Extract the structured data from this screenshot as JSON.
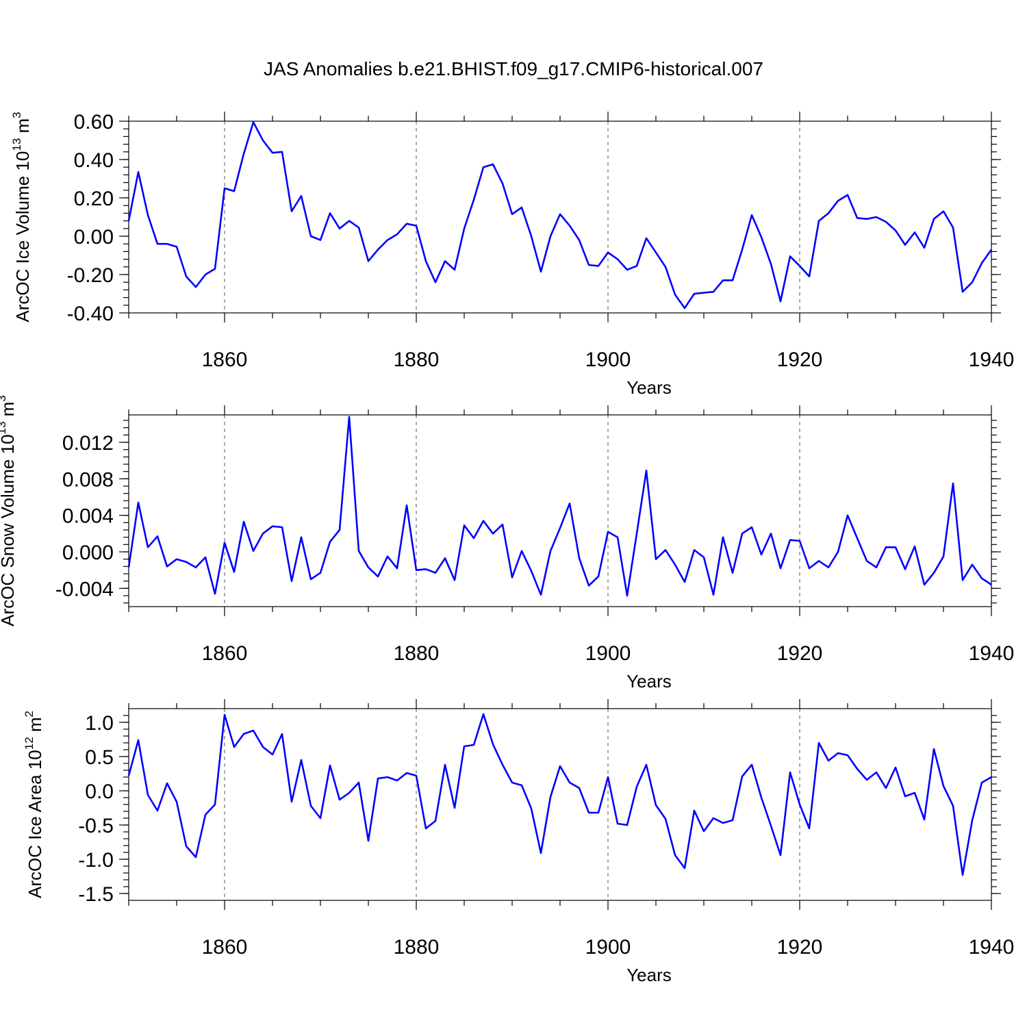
{
  "chart_data": {
    "title": "JAS Anomalies b.e21.BHIST.f09_g17.CMIP6-historical.007",
    "panels": [
      {
        "type": "line",
        "ylabel": "ArcOC Ice Volume 10",
        "ylabel_exp": "13",
        "ylabel_unit": " m",
        "ylabel_unit_exp": "3",
        "xlabel": "Years",
        "xlim": [
          1850,
          1940
        ],
        "ylim": [
          -0.4,
          0.6
        ],
        "yticks": [
          -0.4,
          -0.2,
          0.0,
          0.2,
          0.4,
          0.6
        ],
        "ytick_labels": [
          "-0.40",
          "-0.20",
          "0.00",
          "0.20",
          "0.40",
          "0.60"
        ],
        "xticks": [
          1860,
          1880,
          1900,
          1920,
          1940
        ],
        "xtick_labels": [
          "1860",
          "1880",
          "1900",
          "1920",
          "1940"
        ],
        "grid_x": [
          1860,
          1880,
          1900,
          1920
        ],
        "color": "#0000ff",
        "x": [
          1850,
          1851,
          1852,
          1853,
          1854,
          1855,
          1856,
          1857,
          1858,
          1859,
          1860,
          1861,
          1862,
          1863,
          1864,
          1865,
          1866,
          1867,
          1868,
          1869,
          1870,
          1871,
          1872,
          1873,
          1874,
          1875,
          1876,
          1877,
          1878,
          1879,
          1880,
          1881,
          1882,
          1883,
          1884,
          1885,
          1886,
          1887,
          1888,
          1889,
          1890,
          1891,
          1892,
          1893,
          1894,
          1895,
          1896,
          1897,
          1898,
          1899,
          1900,
          1901,
          1902,
          1903,
          1904,
          1905,
          1906,
          1907,
          1908,
          1909,
          1910,
          1911,
          1912,
          1913,
          1914,
          1915,
          1916,
          1917,
          1918,
          1919,
          1920,
          1921,
          1922,
          1923,
          1924,
          1925,
          1926,
          1927,
          1928,
          1929,
          1930,
          1931,
          1932,
          1933,
          1934,
          1935,
          1936,
          1937,
          1938,
          1939,
          1940
        ],
        "values": [
          0.08,
          0.335,
          0.11,
          -0.04,
          -0.04,
          -0.055,
          -0.21,
          -0.265,
          -0.2,
          -0.17,
          0.25,
          0.235,
          0.43,
          0.595,
          0.5,
          0.435,
          0.44,
          0.13,
          0.21,
          0.0,
          -0.02,
          0.12,
          0.04,
          0.08,
          0.045,
          -0.13,
          -0.07,
          -0.02,
          0.01,
          0.065,
          0.055,
          -0.13,
          -0.24,
          -0.13,
          -0.175,
          0.04,
          0.19,
          0.36,
          0.375,
          0.275,
          0.115,
          0.15,
          0.0,
          -0.185,
          0.0,
          0.115,
          0.055,
          -0.02,
          -0.15,
          -0.155,
          -0.085,
          -0.12,
          -0.175,
          -0.155,
          -0.01,
          -0.085,
          -0.16,
          -0.305,
          -0.375,
          -0.3,
          -0.295,
          -0.29,
          -0.23,
          -0.23,
          -0.07,
          0.11,
          -0.005,
          -0.145,
          -0.34,
          -0.105,
          -0.155,
          -0.21,
          0.08,
          0.12,
          0.185,
          0.215,
          0.095,
          0.09,
          0.1,
          0.075,
          0.03,
          -0.045,
          0.02,
          -0.06,
          0.09,
          0.13,
          0.045,
          -0.29,
          -0.24,
          -0.14,
          -0.07
        ]
      },
      {
        "type": "line",
        "ylabel": "ArcOC Snow Volume 10",
        "ylabel_exp": "13",
        "ylabel_unit": " m",
        "ylabel_unit_exp": "3",
        "xlabel": "Years",
        "xlim": [
          1850,
          1940
        ],
        "ylim": [
          -0.006,
          0.015
        ],
        "yticks": [
          -0.004,
          0.0,
          0.004,
          0.008,
          0.012
        ],
        "ytick_labels": [
          "-0.004",
          "0.000",
          "0.004",
          "0.008",
          "0.012"
        ],
        "xticks": [
          1860,
          1880,
          1900,
          1920,
          1940
        ],
        "xtick_labels": [
          "1860",
          "1880",
          "1900",
          "1920",
          "1940"
        ],
        "grid_x": [
          1860,
          1880,
          1900,
          1920
        ],
        "color": "#0000ff",
        "x": [
          1850,
          1851,
          1852,
          1853,
          1854,
          1855,
          1856,
          1857,
          1858,
          1859,
          1860,
          1861,
          1862,
          1863,
          1864,
          1865,
          1866,
          1867,
          1868,
          1869,
          1870,
          1871,
          1872,
          1873,
          1874,
          1875,
          1876,
          1877,
          1878,
          1879,
          1880,
          1881,
          1882,
          1883,
          1884,
          1885,
          1886,
          1887,
          1888,
          1889,
          1890,
          1891,
          1892,
          1893,
          1894,
          1895,
          1896,
          1897,
          1898,
          1899,
          1900,
          1901,
          1902,
          1903,
          1904,
          1905,
          1906,
          1907,
          1908,
          1909,
          1910,
          1911,
          1912,
          1913,
          1914,
          1915,
          1916,
          1917,
          1918,
          1919,
          1920,
          1921,
          1922,
          1923,
          1924,
          1925,
          1926,
          1927,
          1928,
          1929,
          1930,
          1931,
          1932,
          1933,
          1934,
          1935,
          1936,
          1937,
          1938,
          1939,
          1940
        ],
        "values": [
          -0.0017,
          0.0054,
          0.0005,
          0.0017,
          -0.0016,
          -0.0008,
          -0.0011,
          -0.0017,
          -0.0006,
          -0.0046,
          0.001,
          -0.0022,
          0.0033,
          0.0001,
          0.002,
          0.0028,
          0.0027,
          -0.0032,
          0.0016,
          -0.003,
          -0.0023,
          0.0011,
          0.0024,
          0.0148,
          0.0001,
          -0.0017,
          -0.0027,
          -0.0005,
          -0.0018,
          0.0051,
          -0.002,
          -0.0019,
          -0.0023,
          -0.0007,
          -0.0031,
          0.0029,
          0.0015,
          0.0034,
          0.002,
          0.003,
          -0.0028,
          0.0001,
          -0.0021,
          -0.0047,
          0.0001,
          0.0026,
          0.0053,
          -0.0007,
          -0.0037,
          -0.0027,
          0.0022,
          0.0016,
          -0.0048,
          0.002,
          0.0089,
          -0.0008,
          0.0002,
          -0.0014,
          -0.0033,
          0.0002,
          -0.0006,
          -0.0047,
          0.0016,
          -0.0023,
          0.002,
          0.0027,
          -0.0003,
          0.002,
          -0.0018,
          0.0013,
          0.0012,
          -0.0018,
          -0.001,
          -0.0017,
          0.0,
          0.004,
          0.0015,
          -0.001,
          -0.0017,
          0.0005,
          0.0005,
          -0.0019,
          0.0006,
          -0.0036,
          -0.0023,
          -0.0005,
          0.0075,
          -0.0031,
          -0.0014,
          -0.0029,
          -0.0036
        ]
      },
      {
        "type": "line",
        "ylabel": "ArcOC Ice Area 10",
        "ylabel_exp": "12",
        "ylabel_unit": " m",
        "ylabel_unit_exp": "2",
        "xlabel": "Years",
        "xlim": [
          1850,
          1940
        ],
        "ylim": [
          -1.6,
          1.2
        ],
        "yticks": [
          -1.5,
          -1.0,
          -0.5,
          0.0,
          0.5,
          1.0
        ],
        "ytick_labels": [
          "-1.5",
          "-1.0",
          "-0.5",
          "0.0",
          "0.5",
          "1.0"
        ],
        "xticks": [
          1860,
          1880,
          1900,
          1920,
          1940
        ],
        "xtick_labels": [
          "1860",
          "1880",
          "1900",
          "1920",
          "1940"
        ],
        "grid_x": [
          1860,
          1880,
          1900,
          1920
        ],
        "color": "#0000ff",
        "x": [
          1850,
          1851,
          1852,
          1853,
          1854,
          1855,
          1856,
          1857,
          1858,
          1859,
          1860,
          1861,
          1862,
          1863,
          1864,
          1865,
          1866,
          1867,
          1868,
          1869,
          1870,
          1871,
          1872,
          1873,
          1874,
          1875,
          1876,
          1877,
          1878,
          1879,
          1880,
          1881,
          1882,
          1883,
          1884,
          1885,
          1886,
          1887,
          1888,
          1889,
          1890,
          1891,
          1892,
          1893,
          1894,
          1895,
          1896,
          1897,
          1898,
          1899,
          1900,
          1901,
          1902,
          1903,
          1904,
          1905,
          1906,
          1907,
          1908,
          1909,
          1910,
          1911,
          1912,
          1913,
          1914,
          1915,
          1916,
          1917,
          1918,
          1919,
          1920,
          1921,
          1922,
          1923,
          1924,
          1925,
          1926,
          1927,
          1928,
          1929,
          1930,
          1931,
          1932,
          1933,
          1934,
          1935,
          1936,
          1937,
          1938,
          1939,
          1940
        ],
        "values": [
          0.22,
          0.74,
          -0.06,
          -0.29,
          0.11,
          -0.16,
          -0.81,
          -0.97,
          -0.35,
          -0.2,
          1.11,
          0.64,
          0.83,
          0.88,
          0.64,
          0.53,
          0.83,
          -0.16,
          0.45,
          -0.22,
          -0.4,
          0.37,
          -0.13,
          -0.03,
          0.12,
          -0.73,
          0.18,
          0.2,
          0.15,
          0.26,
          0.22,
          -0.55,
          -0.44,
          0.38,
          -0.25,
          0.65,
          0.67,
          1.12,
          0.68,
          0.38,
          0.12,
          0.08,
          -0.26,
          -0.91,
          -0.09,
          0.36,
          0.12,
          0.04,
          -0.32,
          -0.32,
          0.2,
          -0.48,
          -0.5,
          0.06,
          0.38,
          -0.21,
          -0.41,
          -0.94,
          -1.13,
          -0.29,
          -0.59,
          -0.4,
          -0.47,
          -0.43,
          0.21,
          0.38,
          -0.1,
          -0.51,
          -0.94,
          0.27,
          -0.2,
          -0.55,
          0.7,
          0.44,
          0.55,
          0.52,
          0.32,
          0.16,
          0.27,
          0.04,
          0.34,
          -0.08,
          -0.03,
          -0.42,
          0.61,
          0.07,
          -0.22,
          -1.23,
          -0.43,
          0.12,
          0.2
        ]
      }
    ]
  }
}
